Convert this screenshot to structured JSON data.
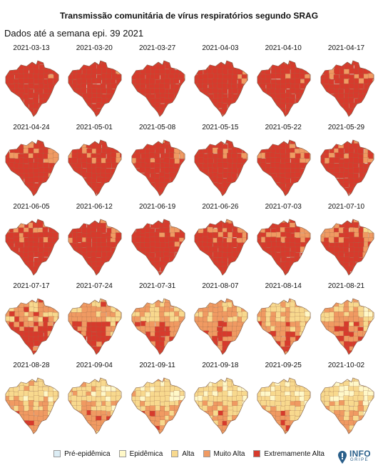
{
  "header": {
    "title": "Transmissão comunitária de vírus respiratórios segundo SRAG",
    "subtitle": "Dados até a semana epi. 39 2021"
  },
  "legend": [
    {
      "label": "Pré-epidêmica",
      "color": "#dcedf5"
    },
    {
      "label": "Epidêmica",
      "color": "#fff8c8"
    },
    {
      "label": "Alta",
      "color": "#f8d98e"
    },
    {
      "label": "Muito Alta",
      "color": "#f09a62"
    },
    {
      "label": "Extremamente Alta",
      "color": "#d73a2c"
    }
  ],
  "logo": {
    "top": "INFO",
    "bottom": "GRIPE"
  },
  "maps": [
    {
      "date": "2021-03-13",
      "level": 4.9
    },
    {
      "date": "2021-03-20",
      "level": 4.9
    },
    {
      "date": "2021-03-27",
      "level": 4.9
    },
    {
      "date": "2021-04-03",
      "level": 4.8
    },
    {
      "date": "2021-04-10",
      "level": 4.7
    },
    {
      "date": "2021-04-17",
      "level": 4.6
    },
    {
      "date": "2021-04-24",
      "level": 4.5
    },
    {
      "date": "2021-05-01",
      "level": 4.5
    },
    {
      "date": "2021-05-08",
      "level": 4.6
    },
    {
      "date": "2021-05-15",
      "level": 4.6
    },
    {
      "date": "2021-05-22",
      "level": 4.6
    },
    {
      "date": "2021-05-29",
      "level": 4.6
    },
    {
      "date": "2021-06-05",
      "level": 4.6
    },
    {
      "date": "2021-06-12",
      "level": 4.6
    },
    {
      "date": "2021-06-19",
      "level": 4.5
    },
    {
      "date": "2021-06-26",
      "level": 4.4
    },
    {
      "date": "2021-07-03",
      "level": 4.3
    },
    {
      "date": "2021-07-10",
      "level": 4.1
    },
    {
      "date": "2021-07-17",
      "level": 3.6
    },
    {
      "date": "2021-07-24",
      "level": 3.5
    },
    {
      "date": "2021-07-31",
      "level": 3.3
    },
    {
      "date": "2021-08-07",
      "level": 3.2
    },
    {
      "date": "2021-08-14",
      "level": 3.0
    },
    {
      "date": "2021-08-21",
      "level": 3.0
    },
    {
      "date": "2021-08-28",
      "level": 2.7
    },
    {
      "date": "2021-09-04",
      "level": 2.6
    },
    {
      "date": "2021-09-11",
      "level": 2.5
    },
    {
      "date": "2021-09-18",
      "level": 2.5
    },
    {
      "date": "2021-09-25",
      "level": 2.4
    },
    {
      "date": "2021-10-02",
      "level": 2.3
    }
  ]
}
